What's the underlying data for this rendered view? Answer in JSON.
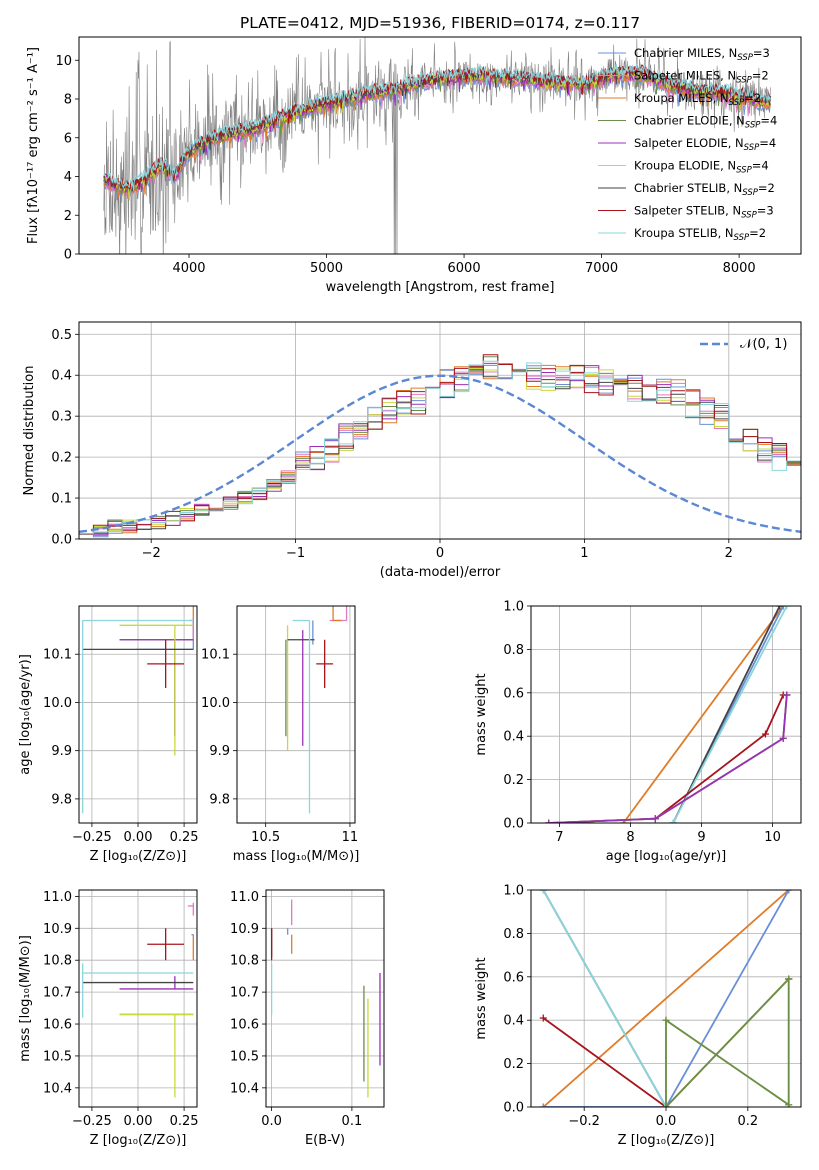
{
  "colors": {
    "Chabrier MILES": "#6a8fd8",
    "Salpeter MILES": "#e377c2",
    "Kroupa MILES": "#e07b28",
    "Chabrier ELODIE": "#6b8e4e",
    "Salpeter ELODIE": "#9b30b8",
    "Kroupa ELODIE": "#c9d93b",
    "Chabrier STELIB": "#444444",
    "Salpeter STELIB": "#a8141c",
    "Kroupa STELIB": "#8ad6dc",
    "data": "#808080",
    "normal": "#5b87d4"
  },
  "chart_data": [
    {
      "id": "spectrum",
      "type": "line",
      "title": "PLATE=0412, MJD=51936, FIBERID=0174, z=0.117",
      "xlabel": "wavelength [Angstrom, rest frame]",
      "ylabel": "Flux [fλ10⁻¹⁷ erg cm⁻² s⁻¹ A⁻¹]",
      "xlim": [
        3200,
        8450
      ],
      "ylim": [
        0,
        11.2
      ],
      "xticks": [
        4000,
        5000,
        6000,
        7000,
        8000
      ],
      "yticks": [
        0,
        2,
        4,
        6,
        8,
        10
      ],
      "legend_placement": "upper-right",
      "legend": [
        {
          "label": "Chabrier MILES, N",
          "sub": "SSP",
          "tail": "=3"
        },
        {
          "label": "Salpeter MILES, N",
          "sub": "SSP",
          "tail": "=2"
        },
        {
          "label": "Kroupa MILES, N",
          "sub": "SSP",
          "tail": "=2"
        },
        {
          "label": "Chabrier ELODIE, N",
          "sub": "SSP",
          "tail": "=4"
        },
        {
          "label": "Salpeter ELODIE, N",
          "sub": "SSP",
          "tail": "=4"
        },
        {
          "label": "Kroupa ELODIE, N",
          "sub": "SSP",
          "tail": "=4"
        },
        {
          "label": "Chabrier STELIB, N",
          "sub": "SSP",
          "tail": "=2"
        },
        {
          "label": "Salpeter STELIB, N",
          "sub": "SSP",
          "tail": "=3"
        },
        {
          "label": "Kroupa STELIB, N",
          "sub": "SSP",
          "tail": "=2"
        }
      ],
      "model_anchor_x": [
        3380,
        3450,
        3550,
        3650,
        3800,
        3900,
        4000,
        4150,
        4300,
        4500,
        4700,
        4900,
        5100,
        5300,
        5500,
        5700,
        5900,
        6100,
        6300,
        6500,
        6700,
        6900,
        7100,
        7300,
        7500,
        7700,
        7900,
        8100,
        8230
      ],
      "model_anchor_y": [
        3.9,
        3.6,
        3.4,
        3.7,
        4.6,
        4.0,
        5.3,
        5.9,
        6.2,
        6.5,
        7.1,
        7.6,
        7.9,
        8.3,
        8.5,
        8.9,
        9.1,
        9.2,
        9.1,
        9.0,
        8.8,
        8.8,
        9.3,
        9.3,
        8.7,
        8.4,
        8.3,
        8.0,
        7.8
      ]
    },
    {
      "id": "residuals",
      "type": "histogram",
      "xlabel": "(data-model)/error",
      "ylabel": "Normed distribution",
      "xlim": [
        -2.5,
        2.5
      ],
      "ylim": [
        0,
        0.53
      ],
      "xticks": [
        -2,
        -1,
        0,
        1,
        2
      ],
      "yticks": [
        0.0,
        0.1,
        0.2,
        0.3,
        0.4,
        0.5
      ],
      "grid": true,
      "legend_placement": "upper-right",
      "legend": "𝒩(0, 1)",
      "bin_width": 0.1,
      "base_values": [
        0.02,
        0.02,
        0.03,
        0.03,
        0.04,
        0.04,
        0.05,
        0.06,
        0.07,
        0.08,
        0.09,
        0.1,
        0.11,
        0.13,
        0.15,
        0.18,
        0.2,
        0.22,
        0.25,
        0.27,
        0.29,
        0.31,
        0.33,
        0.34,
        0.36,
        0.38,
        0.39,
        0.41,
        0.42,
        0.41,
        0.41,
        0.4,
        0.39,
        0.4,
        0.4,
        0.39,
        0.38,
        0.38,
        0.37,
        0.37,
        0.36,
        0.36,
        0.33,
        0.31,
        0.3,
        0.27,
        0.24,
        0.22,
        0.2,
        0.18,
        0.16,
        0.13,
        0.11,
        0.09,
        0.08,
        0.07,
        0.06,
        0.05,
        0.05,
        0.04
      ]
    },
    {
      "id": "age-Z",
      "type": "scatter",
      "xlabel": "Z [log₁₀(Z/Z⊙)]",
      "ylabel": "age  [log₁₀(age/yr)]",
      "xlim": [
        -0.32,
        0.32
      ],
      "ylim": [
        9.75,
        10.2
      ],
      "xticks": [
        -0.25,
        0.0,
        0.25
      ],
      "xticklabels": [
        "−0.25",
        "0.00",
        "0.25"
      ],
      "yticks": [
        9.8,
        9.9,
        10.0,
        10.1
      ],
      "grid": true,
      "points": [
        {
          "model": "Chabrier MILES",
          "x": 0.3,
          "xerr": [
            0.31,
            0.0
          ],
          "y": 10.11,
          "yerr": [
            0.0,
            0.06
          ]
        },
        {
          "model": "Salpeter MILES",
          "x": 0.3,
          "xerr": [
            0.02,
            0.0
          ],
          "y": 10.13,
          "yerr": [
            0.0,
            0.04
          ]
        },
        {
          "model": "Kroupa MILES",
          "x": 0.3,
          "xerr": [
            0.02,
            0.0
          ],
          "y": 10.17,
          "yerr": [
            0.0,
            0.03
          ]
        },
        {
          "model": "Chabrier ELODIE",
          "x": 0.2,
          "xerr": [
            0.3,
            0.1
          ],
          "y": 10.13,
          "yerr": [
            0.2,
            0.0
          ]
        },
        {
          "model": "Salpeter ELODIE",
          "x": 0.2,
          "xerr": [
            0.3,
            0.1
          ],
          "y": 10.13,
          "yerr": [
            0.2,
            0.0
          ]
        },
        {
          "model": "Kroupa ELODIE",
          "x": 0.2,
          "xerr": [
            0.3,
            0.1
          ],
          "y": 10.16,
          "yerr": [
            0.27,
            0.0
          ]
        },
        {
          "model": "Chabrier STELIB",
          "x": -0.3,
          "xerr": [
            0.0,
            0.6
          ],
          "y": 10.11,
          "yerr": [
            0.0,
            0.0
          ]
        },
        {
          "model": "Salpeter STELIB",
          "x": 0.15,
          "xerr": [
            0.1,
            0.1
          ],
          "y": 10.08,
          "yerr": [
            0.05,
            0.05
          ]
        },
        {
          "model": "Kroupa STELIB",
          "x": -0.3,
          "xerr": [
            0.0,
            0.6
          ],
          "y": 10.17,
          "yerr": [
            0.4,
            0.0
          ]
        }
      ]
    },
    {
      "id": "age-mass",
      "type": "scatter",
      "xlabel": "mass [log₁₀(M/M⊙)]",
      "xlim": [
        10.33,
        11.03
      ],
      "ylim": [
        9.75,
        10.2
      ],
      "xticks": [
        10.5,
        11.0
      ],
      "yticks": [
        9.8,
        9.9,
        10.0,
        10.1
      ],
      "grid": true,
      "points": [
        {
          "model": "Chabrier MILES",
          "x": 10.78,
          "xerr": [
            0.0,
            0.0
          ],
          "y": 10.12,
          "yerr": [
            0.0,
            0.05
          ]
        },
        {
          "model": "Salpeter MILES",
          "x": 10.98,
          "xerr": [
            0.1,
            0.0
          ],
          "y": 10.17,
          "yerr": [
            0.0,
            0.03
          ]
        },
        {
          "model": "Kroupa MILES",
          "x": 10.9,
          "xerr": [
            0.0,
            0.05
          ],
          "y": 10.17,
          "yerr": [
            0.0,
            0.04
          ]
        },
        {
          "model": "Chabrier ELODIE",
          "x": 10.62,
          "xerr": [
            0.0,
            0.0
          ],
          "y": 10.13,
          "yerr": [
            0.2,
            0.0
          ]
        },
        {
          "model": "Salpeter ELODIE",
          "x": 10.72,
          "xerr": [
            0.0,
            0.0
          ],
          "y": 10.13,
          "yerr": [
            0.22,
            0.02
          ]
        },
        {
          "model": "Kroupa ELODIE",
          "x": 10.63,
          "xerr": [
            0.0,
            0.0
          ],
          "y": 10.16,
          "yerr": [
            0.26,
            0.0
          ]
        },
        {
          "model": "Chabrier STELIB",
          "x": 10.73,
          "xerr": [
            0.1,
            0.06
          ],
          "y": 10.13,
          "yerr": [
            0.0,
            0.0
          ]
        },
        {
          "model": "Salpeter STELIB",
          "x": 10.85,
          "xerr": [
            0.05,
            0.05
          ],
          "y": 10.08,
          "yerr": [
            0.05,
            0.05
          ]
        },
        {
          "model": "Kroupa STELIB",
          "x": 10.76,
          "xerr": [
            0.1,
            0.0
          ],
          "y": 10.17,
          "yerr": [
            0.4,
            0.0
          ]
        }
      ]
    },
    {
      "id": "weight-age",
      "type": "line",
      "xlabel": "age  [log₁₀(age/yr)]",
      "ylabel": "mass weight",
      "xlim": [
        6.6,
        10.4
      ],
      "ylim": [
        0.0,
        1.0
      ],
      "xticks": [
        7,
        8,
        9,
        10
      ],
      "yticks": [
        0.0,
        0.2,
        0.4,
        0.6,
        0.8,
        1.0
      ],
      "grid": true,
      "series": [
        {
          "model": "Kroupa MILES",
          "x": [
            7.9,
            10.15
          ],
          "y": [
            0.0,
            1.0
          ]
        },
        {
          "model": "Chabrier MILES",
          "x": [
            8.6,
            10.15
          ],
          "y": [
            0.0,
            1.0
          ]
        },
        {
          "model": "Chabrier STELIB",
          "x": [
            8.6,
            10.1
          ],
          "y": [
            0.0,
            1.0
          ]
        },
        {
          "model": "Kroupa STELIB",
          "x": [
            8.6,
            10.2
          ],
          "y": [
            0.0,
            1.0
          ]
        },
        {
          "model": "Salpeter STELIB",
          "x": [
            6.85,
            8.35,
            9.9,
            10.15,
            10.2
          ],
          "y": [
            0.0,
            0.02,
            0.41,
            0.59,
            0.59
          ]
        },
        {
          "model": "Kroupa ELODIE",
          "x": [
            6.85,
            8.35,
            10.15,
            10.2
          ],
          "y": [
            0.0,
            0.02,
            0.39,
            0.59
          ]
        },
        {
          "model": "Chabrier ELODIE",
          "x": [
            6.85,
            8.35,
            10.15,
            10.2
          ],
          "y": [
            0.0,
            0.02,
            0.39,
            0.59
          ]
        },
        {
          "model": "Salpeter ELODIE",
          "x": [
            6.85,
            8.35,
            10.15,
            10.2
          ],
          "y": [
            0.0,
            0.02,
            0.39,
            0.59
          ]
        }
      ]
    },
    {
      "id": "mass-Z",
      "type": "scatter",
      "xlabel": "Z [log₁₀(Z/Z⊙)]",
      "ylabel": "mass [log₁₀(M/M⊙)]",
      "xlim": [
        -0.32,
        0.32
      ],
      "ylim": [
        10.34,
        11.02
      ],
      "xticks": [
        -0.25,
        0.0,
        0.25
      ],
      "xticklabels": [
        "−0.25",
        "0.00",
        "0.25"
      ],
      "yticks": [
        10.4,
        10.5,
        10.6,
        10.7,
        10.8,
        10.9,
        11.0
      ],
      "grid": true,
      "points": [
        {
          "model": "Chabrier MILES",
          "x": 0.3,
          "xerr": [
            0.01,
            0.0
          ],
          "y": 10.88,
          "yerr": [
            0.0,
            0.0
          ]
        },
        {
          "model": "Salpeter MILES",
          "x": 0.3,
          "xerr": [
            0.03,
            0.0
          ],
          "y": 10.97,
          "yerr": [
            0.03,
            0.01
          ]
        },
        {
          "model": "Kroupa MILES",
          "x": 0.3,
          "xerr": [
            0.0,
            0.0
          ],
          "y": 10.88,
          "yerr": [
            0.08,
            0.0
          ]
        },
        {
          "model": "Chabrier ELODIE",
          "x": 0.2,
          "xerr": [
            0.3,
            0.1
          ],
          "y": 10.63,
          "yerr": [
            0.0,
            0.0
          ]
        },
        {
          "model": "Salpeter ELODIE",
          "x": 0.2,
          "xerr": [
            0.3,
            0.1
          ],
          "y": 10.71,
          "yerr": [
            0.0,
            0.04
          ]
        },
        {
          "model": "Kroupa ELODIE",
          "x": 0.2,
          "xerr": [
            0.3,
            0.1
          ],
          "y": 10.63,
          "yerr": [
            0.26,
            0.0
          ]
        },
        {
          "model": "Chabrier STELIB",
          "x": -0.3,
          "xerr": [
            0.0,
            0.6
          ],
          "y": 10.73,
          "yerr": [
            0.0,
            0.0
          ]
        },
        {
          "model": "Salpeter STELIB",
          "x": 0.15,
          "xerr": [
            0.1,
            0.1
          ],
          "y": 10.85,
          "yerr": [
            0.05,
            0.05
          ]
        },
        {
          "model": "Kroupa STELIB",
          "x": -0.3,
          "xerr": [
            0.0,
            0.6
          ],
          "y": 10.76,
          "yerr": [
            0.14,
            0.03
          ]
        }
      ]
    },
    {
      "id": "mass-EBV",
      "type": "scatter",
      "xlabel": "E(B-V)",
      "xlim": [
        -0.007,
        0.14
      ],
      "ylim": [
        10.34,
        11.02
      ],
      "xticks": [
        0.0,
        0.1
      ],
      "xticklabels": [
        "0.0",
        "0.1"
      ],
      "yticks": [
        10.4,
        10.5,
        10.6,
        10.7,
        10.8,
        10.9,
        11.0
      ],
      "grid": true,
      "points": [
        {
          "model": "Chabrier MILES",
          "x": 0.02,
          "xerr": [
            0.0,
            0.0
          ],
          "y": 10.89,
          "yerr": [
            0.01,
            0.01
          ]
        },
        {
          "model": "Salpeter MILES",
          "x": 0.025,
          "xerr": [
            0.0,
            0.0
          ],
          "y": 10.95,
          "yerr": [
            0.04,
            0.04
          ]
        },
        {
          "model": "Kroupa MILES",
          "x": 0.025,
          "xerr": [
            0.0,
            0.0
          ],
          "y": 10.85,
          "yerr": [
            0.03,
            0.03
          ]
        },
        {
          "model": "Chabrier ELODIE",
          "x": 0.115,
          "xerr": [
            0.0,
            0.0
          ],
          "y": 10.6,
          "yerr": [
            0.18,
            0.12
          ]
        },
        {
          "model": "Salpeter ELODIE",
          "x": 0.135,
          "xerr": [
            0.0,
            0.0
          ],
          "y": 10.62,
          "yerr": [
            0.15,
            0.14
          ]
        },
        {
          "model": "Kroupa ELODIE",
          "x": 0.12,
          "xerr": [
            0.0,
            0.0
          ],
          "y": 10.55,
          "yerr": [
            0.18,
            0.13
          ]
        },
        {
          "model": "Chabrier STELIB",
          "x": 0.0,
          "xerr": [
            0.0,
            0.0
          ],
          "y": 10.87,
          "yerr": [
            0.06,
            0.03
          ]
        },
        {
          "model": "Salpeter STELIB",
          "x": 0.0,
          "xerr": [
            0.0,
            0.0
          ],
          "y": 10.85,
          "yerr": [
            0.05,
            0.05
          ]
        },
        {
          "model": "Kroupa STELIB",
          "x": 0.0,
          "xerr": [
            0.0,
            0.0
          ],
          "y": 10.71,
          "yerr": [
            0.08,
            0.08
          ]
        }
      ]
    },
    {
      "id": "weight-Z",
      "type": "line",
      "xlabel": "Z [log₁₀(Z/Z⊙)]",
      "ylabel": "mass weight",
      "xlim": [
        -0.33,
        0.33
      ],
      "ylim": [
        0.0,
        1.0
      ],
      "xticks": [
        -0.2,
        0.0,
        0.2
      ],
      "xticklabels": [
        "−0.2",
        "0.0",
        "0.2"
      ],
      "yticks": [
        0.0,
        0.2,
        0.4,
        0.6,
        0.8,
        1.0
      ],
      "grid": true,
      "series": [
        {
          "model": "Kroupa MILES",
          "x": [
            -0.3,
            0.3
          ],
          "y": [
            0.0,
            1.0
          ]
        },
        {
          "model": "Chabrier MILES",
          "x": [
            -0.3,
            0.0,
            0.3
          ],
          "y": [
            0.0,
            0.0,
            1.0
          ]
        },
        {
          "model": "Salpeter STELIB",
          "x": [
            -0.3,
            0.0,
            0.3,
            0.3
          ],
          "y": [
            0.41,
            0.0,
            0.59,
            0.59
          ]
        },
        {
          "model": "Chabrier STELIB",
          "x": [
            -0.3,
            0.0
          ],
          "y": [
            1.0,
            0.0
          ]
        },
        {
          "model": "Kroupa STELIB",
          "x": [
            -0.3,
            0.0
          ],
          "y": [
            1.0,
            0.0
          ]
        },
        {
          "model": "Kroupa ELODIE",
          "x": [
            0.0,
            0.0,
            0.3,
            0.3,
            0.0
          ],
          "y": [
            0.0,
            0.4,
            0.01,
            0.59,
            0.0
          ]
        },
        {
          "model": "Chabrier ELODIE",
          "x": [
            0.0,
            0.0,
            0.3,
            0.3,
            0.0
          ],
          "y": [
            0.0,
            0.4,
            0.01,
            0.59,
            0.0
          ]
        }
      ]
    }
  ]
}
